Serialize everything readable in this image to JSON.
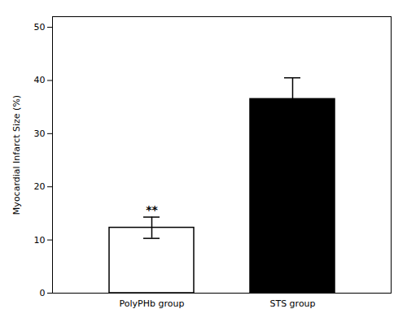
{
  "chart_data": {
    "type": "bar",
    "categories": [
      "PolyPHb group",
      "STS group"
    ],
    "values": [
      12.3,
      36.5
    ],
    "errors": [
      2.0,
      4.0
    ],
    "colors": [
      "#ffffff",
      "#000000"
    ],
    "ylabel": "Myocardial Infarct Size (%)",
    "ylim": [
      0,
      52
    ],
    "yticks": [
      0,
      10,
      20,
      30,
      40,
      50
    ],
    "grid": false,
    "annotations": [
      {
        "text": "**",
        "x": "PolyPHb group"
      }
    ]
  }
}
